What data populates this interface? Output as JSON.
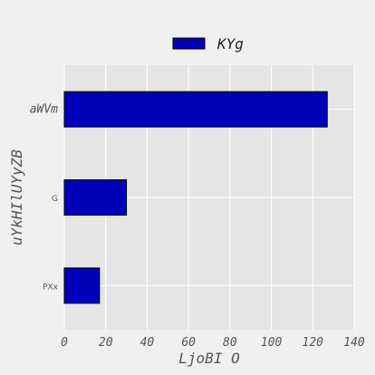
{
  "chart_data": {
    "type": "bar",
    "orientation": "horizontal",
    "categories": [
      "aWVm",
      "G",
      "PXx"
    ],
    "series": [
      {
        "name": "KYg",
        "values": [
          127,
          30,
          17
        ],
        "color": "#0000b8"
      }
    ],
    "xlabel": "LjoBI O",
    "ylabel": "uYkHIlUYyZB",
    "xlim": [
      0,
      140
    ],
    "xticks": [
      "0",
      "20",
      "40",
      "60",
      "80",
      "100",
      "120",
      "140"
    ],
    "grid": true,
    "legend_position": "top-center",
    "colors": {
      "background": "#f0f0f0",
      "plot_background": "#e5e5e5",
      "grid": "#ffffff",
      "bar_edge": "#000000"
    }
  }
}
